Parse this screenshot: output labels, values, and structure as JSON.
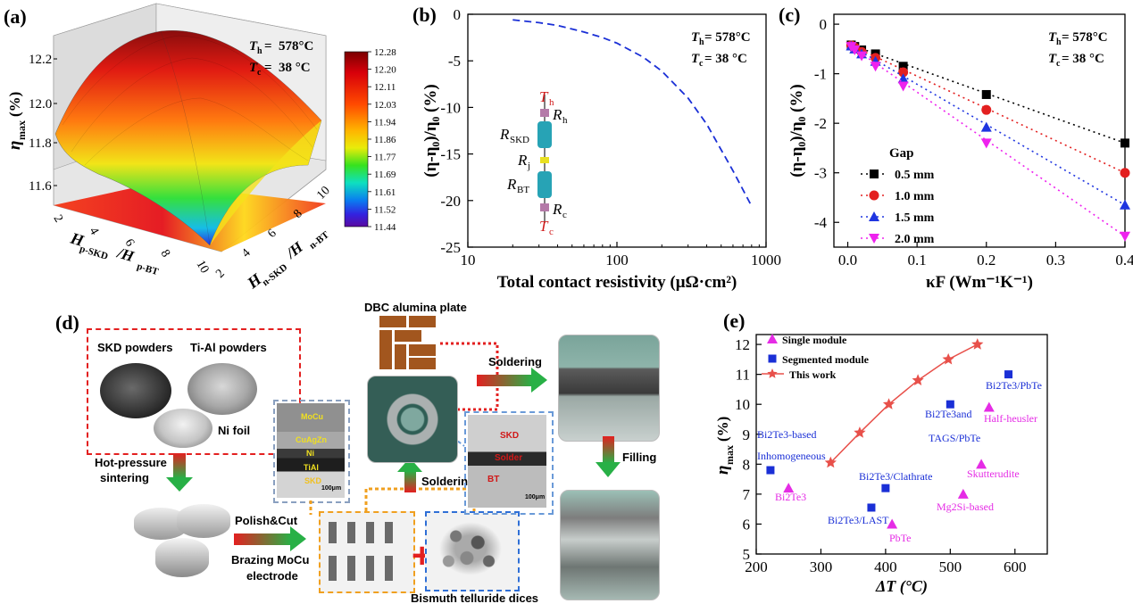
{
  "panel_a": {
    "label": "(a)",
    "th": "578°C",
    "tc": "38 °C",
    "zlabel": "η",
    "zsub": "max",
    "zunit": " (%)",
    "zticks": [
      "12.2",
      "12.0",
      "11.8",
      "11.6"
    ],
    "xaxis_main": "H",
    "xaxis_sub1": "p-SKD",
    "xaxis_mid": "/H",
    "xaxis_sub2": "p-BT",
    "yaxis_sub1": "n-SKD",
    "yaxis_sub2": "n-BT",
    "xticks": [
      "2",
      "4",
      "6",
      "8",
      "10"
    ],
    "yticks": [
      "2",
      "4",
      "6",
      "8",
      "10"
    ],
    "colorbar": [
      "12.28",
      "12.20",
      "12.11",
      "12.03",
      "11.94",
      "11.86",
      "11.77",
      "11.69",
      "11.61",
      "11.52",
      "11.44"
    ]
  },
  "chart_data": [
    {
      "type": "line",
      "panel": "(b)",
      "th": "578°C",
      "tc": "38 °C",
      "xlabel": "Total contact resistivity (μΩ·cm²)",
      "ylabel": "(η-η₀)/η₀ (%)",
      "xscale": "log",
      "xlim": [
        10,
        1000
      ],
      "ylim": [
        -25,
        0
      ],
      "xticks": [
        "10",
        "100",
        "1000"
      ],
      "yticks": [
        "0",
        "-5",
        "-10",
        "-15",
        "-20",
        "-25"
      ],
      "series": [
        {
          "x": [
            20,
            30,
            40,
            60,
            80,
            100,
            150,
            200,
            300,
            400,
            600,
            800
          ],
          "y": [
            -0.6,
            -0.9,
            -1.2,
            -1.9,
            -2.5,
            -3.1,
            -4.6,
            -6.1,
            -9.0,
            -11.8,
            -16.8,
            -20.6
          ]
        }
      ],
      "schematic": {
        "th": "T",
        "th_sub": "h",
        "rh": "R",
        "rh_sub": "h",
        "rskd": "R",
        "rskd_sub": "SKD",
        "rj": "R",
        "rj_sub": "j",
        "rbt": "R",
        "rbt_sub": "BT",
        "rc": "R",
        "rc_sub": "c",
        "tc": "T",
        "tc_sub": "c"
      }
    },
    {
      "type": "scatter",
      "panel": "(c)",
      "th": "578°C",
      "tc": "38 °C",
      "xlabel": "κF (Wm⁻¹K⁻¹)",
      "ylabel": "(η-η₀)/η₀ (%)",
      "xlim": [
        -0.02,
        0.4
      ],
      "ylim": [
        -4.5,
        0.2
      ],
      "xticks": [
        "0.0",
        "0.1",
        "0.2",
        "0.3",
        "0.4"
      ],
      "yticks": [
        "0",
        "-1",
        "-2",
        "-3",
        "-4"
      ],
      "legend_title": "Gap",
      "series": [
        {
          "name": "0.5 mm",
          "color": "#000000",
          "marker": "square",
          "x": [
            0.005,
            0.01,
            0.02,
            0.04,
            0.08,
            0.2,
            0.4
          ],
          "y": [
            -0.42,
            -0.45,
            -0.52,
            -0.6,
            -0.85,
            -1.42,
            -2.4
          ]
        },
        {
          "name": "1.0 mm",
          "color": "#e32020",
          "marker": "circle",
          "x": [
            0.005,
            0.01,
            0.02,
            0.04,
            0.08,
            0.2,
            0.4
          ],
          "y": [
            -0.43,
            -0.47,
            -0.56,
            -0.68,
            -0.97,
            -1.73,
            -3.0
          ]
        },
        {
          "name": "1.5 mm",
          "color": "#1f35e0",
          "marker": "triangle-up",
          "x": [
            0.005,
            0.01,
            0.02,
            0.04,
            0.08,
            0.2,
            0.4
          ],
          "y": [
            -0.44,
            -0.5,
            -0.6,
            -0.75,
            -1.1,
            -2.08,
            -3.65
          ]
        },
        {
          "name": "2.0 mm",
          "color": "#ee22ee",
          "marker": "triangle-down",
          "x": [
            0.005,
            0.01,
            0.02,
            0.04,
            0.08,
            0.2,
            0.4
          ],
          "y": [
            -0.45,
            -0.52,
            -0.64,
            -0.85,
            -1.25,
            -2.4,
            -4.28
          ]
        }
      ]
    },
    {
      "type": "scatter",
      "panel": "(e)",
      "xlabel": "ΔT (°C)",
      "ylabel": "η",
      "ylabel_sub": "max",
      "ylabel_unit": " (%)",
      "xlim": [
        200,
        650
      ],
      "ylim": [
        5,
        12
      ],
      "xticks": [
        "200",
        "300",
        "400",
        "500",
        "600"
      ],
      "yticks": [
        "5",
        "6",
        "7",
        "8",
        "9",
        "10",
        "11",
        "12"
      ],
      "legend": [
        "Single module",
        "Segmented module",
        "This work"
      ],
      "single_module": {
        "color": "#e52ce5",
        "points": [
          {
            "x": 250,
            "y": 7.2,
            "label": "Bi2Te3"
          },
          {
            "x": 410,
            "y": 6.0,
            "label": "PbTe"
          },
          {
            "x": 520,
            "y": 7.0,
            "label": "Mg2Si-based"
          },
          {
            "x": 548,
            "y": 8.0,
            "label": "Skutterudite"
          },
          {
            "x": 560,
            "y": 9.9,
            "label": "Half-heusler"
          }
        ]
      },
      "segmented_module": {
        "color": "#1a2fd6",
        "points": [
          {
            "x": 222,
            "y": 7.8,
            "label": "Bi2Te3-based Inhomogeneous"
          },
          {
            "x": 378,
            "y": 6.55,
            "label": "Bi2Te3/LAST"
          },
          {
            "x": 400,
            "y": 7.2,
            "label": "Bi2Te3/Clathrate"
          },
          {
            "x": 500,
            "y": 10.0,
            "label": "Bi2Te3and TAGS/PbTe"
          },
          {
            "x": 590,
            "y": 11.0,
            "label": "Bi2Te3/PbTe"
          }
        ]
      },
      "this_work": {
        "color": "#e8504a",
        "x": [
          315,
          360,
          405,
          450,
          497,
          542
        ],
        "y": [
          8.05,
          9.05,
          10.0,
          10.8,
          11.5,
          12.0
        ]
      }
    }
  ],
  "panel_d": {
    "label": "(d)",
    "skd_powders": "SKD powders",
    "tial_powders": "Ti-Al powders",
    "ni_foil": "Ni foil",
    "hot_pressure": "Hot-pressure",
    "sintering": "sintering",
    "polish_cut": "Polish&Cut",
    "brazing": "Brazing MoCu",
    "electrode": "electrode",
    "bismuth": "Bismuth telluride dices",
    "dbc": "DBC alumina plate",
    "soldering": "Soldering",
    "soldering2": "Soldering",
    "filling": "Filling",
    "micro1_layers": [
      "MoCu",
      "CuAgZn",
      "Ni",
      "TiAl",
      "SKD"
    ],
    "micro1_scale": "100μm",
    "micro2_layers": [
      "SKD",
      "Solder",
      "BT"
    ],
    "micro2_scale": "100μm"
  },
  "panel_b_label": "(b)",
  "panel_c_label": "(c)",
  "panel_e_label": "(e)",
  "colors": {
    "red": "#e32020",
    "blue_dash": "#1a2fd6",
    "green": "#28b046",
    "teal_box": "#3c6b63"
  }
}
